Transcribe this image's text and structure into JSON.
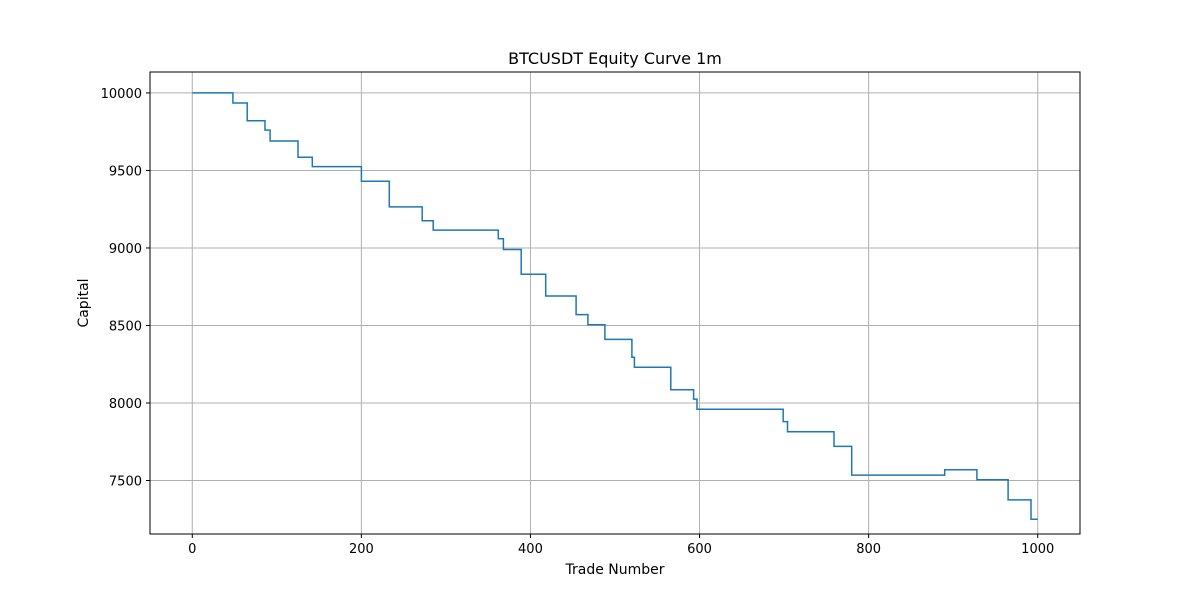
{
  "chart_data": {
    "type": "line",
    "title": "BTCUSDT Equity Curve 1m",
    "xlabel": "Trade Number",
    "ylabel": "Capital",
    "xlim": [
      -50,
      1050
    ],
    "ylim": [
      7155,
      10135
    ],
    "xticks": [
      0,
      200,
      400,
      600,
      800,
      1000
    ],
    "yticks": [
      7500,
      8000,
      8500,
      9000,
      9500,
      10000
    ],
    "grid": true,
    "line_color": "#1f77b4",
    "series": [
      {
        "step": "post",
        "points": [
          [
            0,
            10000
          ],
          [
            48,
            9935
          ],
          [
            65,
            9820
          ],
          [
            86,
            9760
          ],
          [
            92,
            9690
          ],
          [
            125,
            9585
          ],
          [
            142,
            9525
          ],
          [
            200,
            9430
          ],
          [
            233,
            9265
          ],
          [
            272,
            9175
          ],
          [
            285,
            9115
          ],
          [
            362,
            9060
          ],
          [
            368,
            8990
          ],
          [
            389,
            8830
          ],
          [
            418,
            8690
          ],
          [
            454,
            8570
          ],
          [
            468,
            8505
          ],
          [
            488,
            8410
          ],
          [
            520,
            8295
          ],
          [
            523,
            8230
          ],
          [
            566,
            8085
          ],
          [
            593,
            8025
          ],
          [
            597,
            7960
          ],
          [
            699,
            7880
          ],
          [
            704,
            7815
          ],
          [
            759,
            7720
          ],
          [
            780,
            7535
          ],
          [
            890,
            7570
          ],
          [
            928,
            7505
          ],
          [
            965,
            7375
          ],
          [
            992,
            7250
          ],
          [
            1000,
            7250
          ]
        ]
      }
    ]
  }
}
